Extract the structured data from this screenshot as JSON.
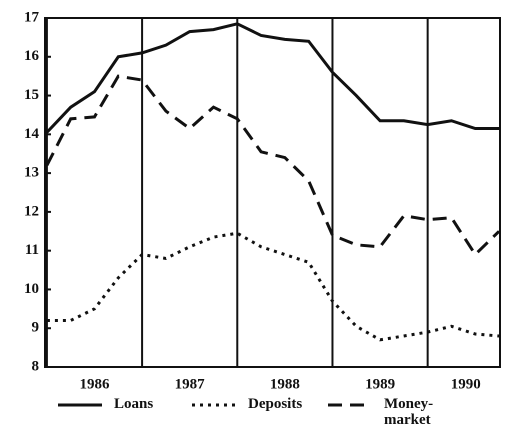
{
  "chart_data": {
    "type": "line",
    "x": [
      1986,
      1986.25,
      1986.5,
      1986.75,
      1987,
      1987.25,
      1987.5,
      1987.75,
      1988,
      1988.25,
      1988.5,
      1988.75,
      1989,
      1989.25,
      1989.5,
      1989.75,
      1990,
      1990.25,
      1990.5,
      1990.75
    ],
    "series": [
      {
        "name": "Loans",
        "color": "#111111",
        "dash": "solid",
        "values": [
          14.05,
          14.7,
          15.1,
          16.0,
          16.1,
          16.3,
          16.65,
          16.7,
          16.85,
          16.55,
          16.45,
          16.4,
          15.6,
          15.0,
          14.35,
          14.35,
          14.25,
          14.35,
          14.15,
          14.15
        ]
      },
      {
        "name": "Deposits",
        "color": "#111111",
        "dash": "dotted",
        "values": [
          9.2,
          9.2,
          9.5,
          10.3,
          10.9,
          10.8,
          11.1,
          11.35,
          11.45,
          11.1,
          10.9,
          10.7,
          9.7,
          9.05,
          8.7,
          8.8,
          8.9,
          9.05,
          8.85,
          8.8
        ]
      },
      {
        "name": "Money-market",
        "color": "#111111",
        "dash": "dashed",
        "values": [
          13.2,
          14.4,
          14.45,
          15.5,
          15.4,
          14.6,
          14.15,
          14.7,
          14.4,
          13.55,
          13.4,
          12.8,
          11.4,
          11.15,
          11.1,
          11.9,
          11.8,
          11.85,
          10.9,
          11.5
        ]
      }
    ],
    "xlim": [
      1985.98,
      1990.76
    ],
    "xticks": [
      {
        "value": 1986.5,
        "label": "1986"
      },
      {
        "value": 1987.5,
        "label": "1987"
      },
      {
        "value": 1988.5,
        "label": "1988"
      },
      {
        "value": 1989.5,
        "label": "1989"
      },
      {
        "value": 1990.4,
        "label": "1990"
      }
    ],
    "vlines": [
      1986,
      1987,
      1988,
      1989,
      1990
    ],
    "ylim": [
      8,
      17
    ],
    "yticks": [
      8,
      9,
      10,
      11,
      12,
      13,
      14,
      15,
      16,
      17
    ],
    "legend": "bottom"
  }
}
